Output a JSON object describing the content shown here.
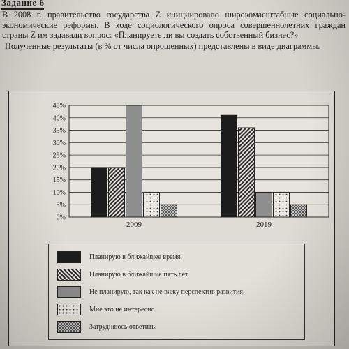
{
  "page": {
    "corner_label": "Задание 6",
    "question": "В 2008 г. правительство государства Z инициировало широкомасштабные социально-экономические реформы. В ходе социологического опроса совершеннолетних граждан страны Z им задавали вопрос: «Планируете ли вы создать собственный бизнес?»",
    "results_note": "Полученные результаты (в % от числа опрошенных) представлены в виде диаграммы."
  },
  "chart_data": {
    "type": "bar",
    "categories": [
      "2009",
      "2019"
    ],
    "ylim": [
      0,
      45
    ],
    "yticks": [
      "0%",
      "5%",
      "10%",
      "15%",
      "20%",
      "25%",
      "30%",
      "35%",
      "40%",
      "45%"
    ],
    "grid": true,
    "legend_position": "bottom",
    "series": [
      {
        "name": "Планирую в ближайшее время.",
        "values": [
          20,
          41
        ],
        "color": "#1c1c1c",
        "pattern": "solid-dark"
      },
      {
        "name": "Планирую в ближайшие пять лет.",
        "values": [
          20,
          36
        ],
        "color": "#3a3a3a",
        "pattern": "diagonal"
      },
      {
        "name": "Не планирую, так как не вижу перспектив развития.",
        "values": [
          45,
          10
        ],
        "color": "#8e8e8e",
        "pattern": "solid-gray"
      },
      {
        "name": "Мне это не интересно.",
        "values": [
          10,
          10
        ],
        "color": "#e8e6df",
        "pattern": "dots"
      },
      {
        "name": "Затрудняюсь ответить.",
        "values": [
          5,
          5
        ],
        "color": "#9a9a9a",
        "pattern": "checker"
      }
    ]
  }
}
